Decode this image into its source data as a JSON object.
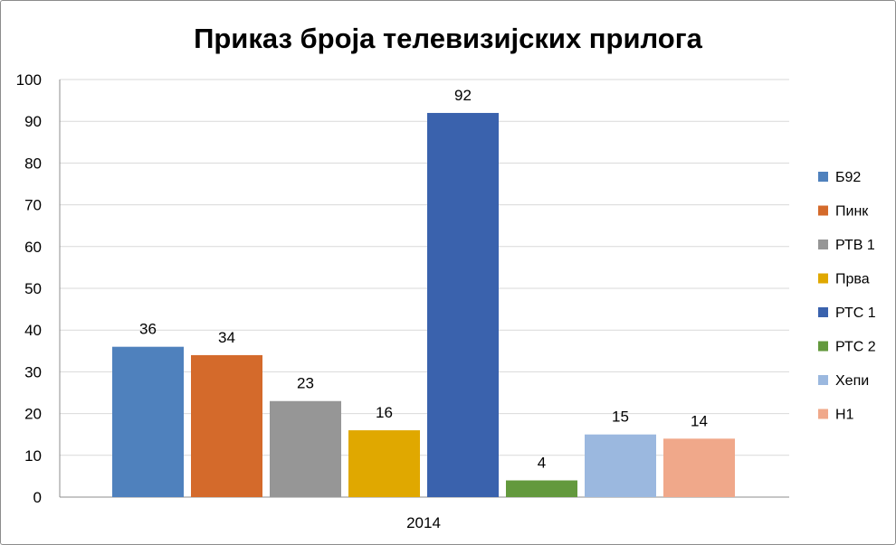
{
  "chart_data": {
    "type": "bar",
    "title": "Приказ броја телевизијских прилога",
    "xlabel": "",
    "ylabel": "",
    "categories": [
      "2014"
    ],
    "ylim": [
      0,
      100
    ],
    "yticks": [
      0,
      10,
      20,
      30,
      40,
      50,
      60,
      70,
      80,
      90,
      100
    ],
    "grid": true,
    "legend_position": "right",
    "series": [
      {
        "name": "Б92",
        "values": [
          36
        ],
        "color": "#4f81bd"
      },
      {
        "name": "Пинк",
        "values": [
          34
        ],
        "color": "#d46a2b"
      },
      {
        "name": "РТВ 1",
        "values": [
          23
        ],
        "color": "#969696"
      },
      {
        "name": "Прва",
        "values": [
          16
        ],
        "color": "#e0a800"
      },
      {
        "name": "РТС 1",
        "values": [
          92
        ],
        "color": "#3a62ad"
      },
      {
        "name": "РТС 2",
        "values": [
          4
        ],
        "color": "#63993d"
      },
      {
        "name": "Хепи",
        "values": [
          15
        ],
        "color": "#9bb8df"
      },
      {
        "name": "Н1",
        "values": [
          14
        ],
        "color": "#f0a88a"
      }
    ]
  }
}
